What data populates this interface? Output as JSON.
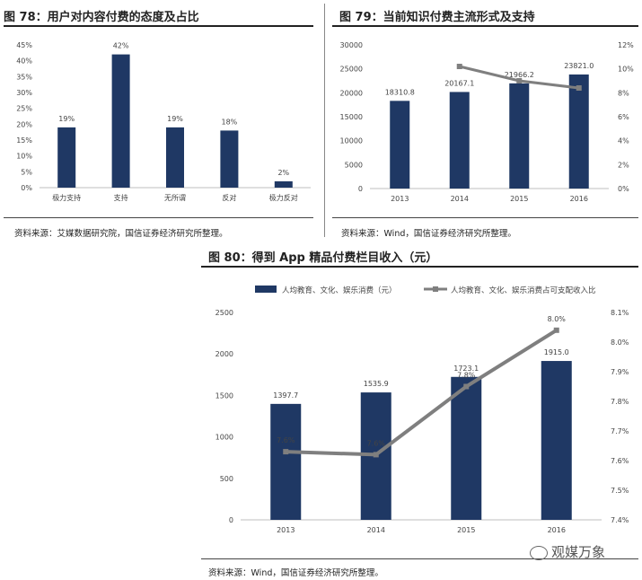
{
  "figures": [
    {
      "title": "图 78：用户对内容付费的态度及占比",
      "source": "资料来源：艾媒数据研究院，国信证券经济研究所整理。"
    },
    {
      "title": "图 79：当前知识付费主流形式及支持",
      "source": "资料来源：Wind，国信证券经济研究所整理。"
    },
    {
      "title": "图 80：得到 App 精品付费栏目收入（元）",
      "source": "资料来源：Wind，国信证券经济研究所整理。"
    }
  ],
  "watermark": "观媒万象",
  "chart_data": [
    {
      "type": "bar",
      "title": "用户对内容付费的态度及占比",
      "categories": [
        "极力支持",
        "支持",
        "无所谓",
        "反对",
        "极力反对"
      ],
      "values": [
        19,
        42,
        19,
        18,
        2
      ],
      "value_labels": [
        "19%",
        "42%",
        "19%",
        "18%",
        "2%"
      ],
      "ylim": [
        0,
        45
      ],
      "yticks": [
        "0%",
        "5%",
        "10%",
        "15%",
        "20%",
        "25%",
        "30%",
        "35%",
        "40%",
        "45%"
      ],
      "color": "#1f3864",
      "grid": false
    },
    {
      "type": "bar",
      "title": "当前知识付费主流形式及支持",
      "categories": [
        "2013",
        "2014",
        "2015",
        "2016"
      ],
      "series": [
        {
          "type": "bar",
          "values": [
            18310.8,
            20167.1,
            21966.2,
            23821.0
          ],
          "labels": [
            "18310.8",
            "20167.1",
            "21966.2",
            "23821.0"
          ],
          "color": "#1f3864"
        },
        {
          "type": "line",
          "axis": "right",
          "values": [
            null,
            10.2,
            9.0,
            8.4
          ],
          "color": "#7f7f7f"
        }
      ],
      "ylim": [
        0,
        30000
      ],
      "yticks": [
        "0",
        "5000",
        "10000",
        "15000",
        "20000",
        "25000",
        "30000"
      ],
      "y2lim": [
        0,
        12
      ],
      "y2ticks": [
        "0%",
        "2%",
        "4%",
        "6%",
        "8%",
        "10%",
        "12%"
      ],
      "grid": false
    },
    {
      "type": "bar",
      "title": "得到 App 精品付费栏目收入（元）",
      "categories": [
        "2013",
        "2014",
        "2015",
        "2016"
      ],
      "legend": [
        "人均教育、文化、娱乐消费（元）",
        "人均教育、文化、娱乐消费占可支配收入比"
      ],
      "legend_position": "top",
      "series": [
        {
          "name": "人均教育、文化、娱乐消费（元）",
          "type": "bar",
          "values": [
            1397.7,
            1535.9,
            1723.1,
            1915.0
          ],
          "labels": [
            "1397.7",
            "1535.9",
            "1723.1",
            "1915.0"
          ],
          "color": "#1f3864"
        },
        {
          "name": "人均教育、文化、娱乐消费占可支配收入比",
          "type": "line",
          "axis": "right",
          "values": [
            7.63,
            7.62,
            7.85,
            8.04
          ],
          "labels": [
            "7.6%",
            "7.6%",
            "7.8%",
            "8.0%"
          ],
          "color": "#7f7f7f"
        }
      ],
      "ylim": [
        0,
        2500
      ],
      "yticks": [
        "0",
        "500",
        "1000",
        "1500",
        "2000",
        "2500"
      ],
      "y2lim": [
        7.4,
        8.1
      ],
      "y2ticks": [
        "7.4%",
        "7.5%",
        "7.6%",
        "7.7%",
        "7.8%",
        "7.9%",
        "8.0%",
        "8.1%"
      ],
      "grid": false
    }
  ]
}
